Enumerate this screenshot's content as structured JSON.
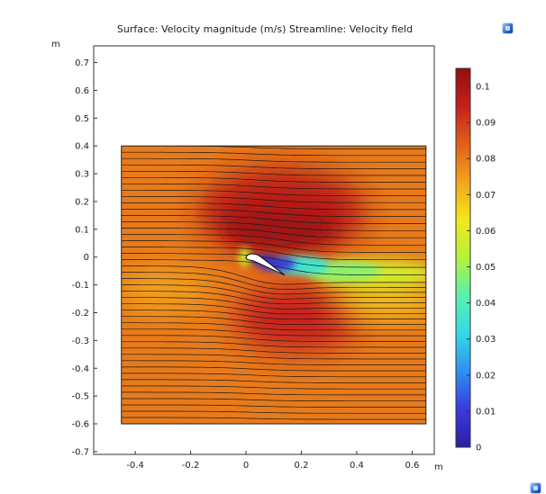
{
  "chart_data": {
    "type": "heatmap",
    "title": "Surface: Velocity magnitude (m/s)  Streamline: Velocity field",
    "x_unit": "m",
    "y_unit": "m",
    "xlim": [
      -0.55,
      0.68
    ],
    "ylim": [
      -0.71,
      0.76
    ],
    "x_ticks": [
      -0.4,
      -0.2,
      0,
      0.2,
      0.4,
      0.6
    ],
    "x_tick_labels": [
      "-0.4",
      "-0.2",
      "0",
      "0.2",
      "0.4",
      "0.6"
    ],
    "y_ticks": [
      0.7,
      0.6,
      0.5,
      0.4,
      0.3,
      0.2,
      0.1,
      0,
      -0.1,
      -0.2,
      -0.3,
      -0.4,
      -0.5,
      -0.6,
      -0.7
    ],
    "y_tick_labels": [
      "0.7",
      "0.6",
      "0.5",
      "0.4",
      "0.3",
      "0.2",
      "0.1",
      "0",
      "-0.1",
      "-0.2",
      "-0.3",
      "-0.4",
      "-0.5",
      "-0.6",
      "-0.7"
    ],
    "domain": {
      "x": [
        -0.45,
        0.65
      ],
      "y": [
        -0.6,
        0.4
      ]
    },
    "airfoil": {
      "leading_edge": [
        0,
        0
      ],
      "trailing_edge": [
        0.14,
        -0.065
      ]
    },
    "freestream_velocity": 0.08,
    "colorbar": {
      "min": 0,
      "max": 0.105,
      "ticks": [
        0.1,
        0.09,
        0.08,
        0.07,
        0.06,
        0.05,
        0.04,
        0.03,
        0.02,
        0.01,
        0
      ],
      "tick_labels": [
        "0.1",
        "0.09",
        "0.08",
        "0.07",
        "0.06",
        "0.05",
        "0.04",
        "0.03",
        "0.02",
        "0.01",
        "0"
      ],
      "colormap": [
        "#2a1ea0",
        "#3a3ae0",
        "#2f8fef",
        "#34d9e8",
        "#58f0b0",
        "#b4f23a",
        "#f2e81a",
        "#f2a51c",
        "#e0601a",
        "#c8201a",
        "#8e0f10"
      ]
    },
    "streamline_count": 44,
    "grid": false
  }
}
